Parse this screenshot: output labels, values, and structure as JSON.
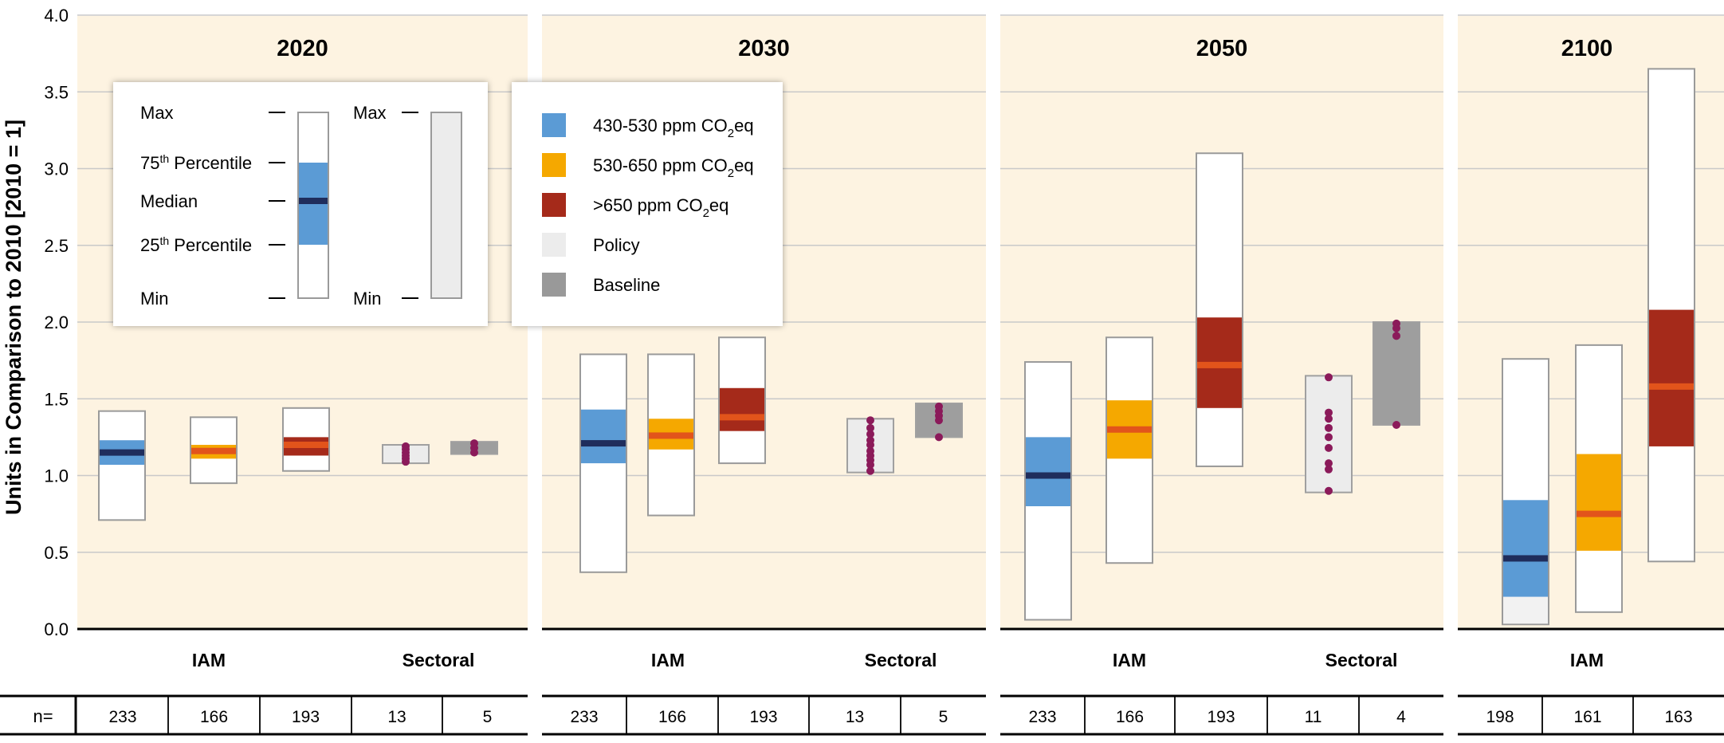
{
  "chart_data": {
    "type": "boxplot",
    "ylabel": "Units in Comparison to 2010 [2010 = 1]",
    "ylim": [
      0,
      4
    ],
    "yticks": [
      "0.0",
      "0.5",
      "1.0",
      "1.5",
      "2.0",
      "2.5",
      "3.0",
      "3.5",
      "4.0"
    ],
    "grid": true,
    "n_label": "n=",
    "legend": {
      "series": [
        {
          "name": "430-530 ppm CO",
          "sub": "2",
          "tail": "eq",
          "color": "#5b9bd5"
        },
        {
          "name": "530-650 ppm CO",
          "sub": "2",
          "tail": "eq",
          "color": "#f5a800"
        },
        {
          "name": ">650 ppm CO",
          "sub": "2",
          "tail": "eq",
          "color": "#a52a1a"
        },
        {
          "name": "Policy",
          "sub": "",
          "tail": "",
          "color": "#ececec"
        },
        {
          "name": "Baseline",
          "sub": "",
          "tail": "",
          "color": "#999999"
        }
      ],
      "key": {
        "max": "Max",
        "p75": "75",
        "p75_sup": "th",
        "p75_tail": " Percentile",
        "median": "Median",
        "p25": "25",
        "p25_sup": "th",
        "p25_tail": " Percentile",
        "min": "Min",
        "max2": "Max",
        "min2": "Min"
      }
    },
    "panels": [
      {
        "title": "2020",
        "groups": [
          "IAM",
          "Sectoral"
        ],
        "n": [
          "233",
          "166",
          "193",
          "13",
          "5"
        ],
        "iam": [
          {
            "series": "430-530",
            "min": 0.71,
            "p25": 1.07,
            "median": 1.15,
            "p75": 1.23,
            "max": 1.42
          },
          {
            "series": "530-650",
            "min": 0.95,
            "p25": 1.11,
            "median": 1.16,
            "p75": 1.2,
            "max": 1.38
          },
          {
            "series": ">650",
            "min": 1.03,
            "p25": 1.13,
            "median": 1.2,
            "p75": 1.25,
            "max": 1.44
          }
        ],
        "sectoral": [
          {
            "series": "Policy",
            "min": 1.08,
            "max": 1.2,
            "points": [
              1.09,
              1.11,
              1.13,
              1.15,
              1.17,
              1.19
            ]
          },
          {
            "series": "Baseline",
            "min": 1.14,
            "max": 1.22,
            "points": [
              1.15,
              1.18,
              1.21
            ]
          }
        ]
      },
      {
        "title": "2030",
        "groups": [
          "IAM",
          "Sectoral"
        ],
        "n": [
          "233",
          "166",
          "193",
          "13",
          "5"
        ],
        "iam": [
          {
            "series": "430-530",
            "min": 0.37,
            "p25": 1.08,
            "median": 1.21,
            "p75": 1.43,
            "max": 1.79
          },
          {
            "series": "530-650",
            "min": 0.74,
            "p25": 1.17,
            "median": 1.26,
            "p75": 1.37,
            "max": 1.79
          },
          {
            "series": ">650",
            "min": 1.08,
            "p25": 1.29,
            "median": 1.38,
            "p75": 1.57,
            "max": 1.9
          }
        ],
        "sectoral": [
          {
            "series": "Policy",
            "min": 1.02,
            "max": 1.37,
            "points": [
              1.03,
              1.07,
              1.1,
              1.13,
              1.16,
              1.2,
              1.23,
              1.27,
              1.31,
              1.36
            ]
          },
          {
            "series": "Baseline",
            "min": 1.25,
            "max": 1.47,
            "points": [
              1.25,
              1.36,
              1.39,
              1.42,
              1.45
            ]
          }
        ]
      },
      {
        "title": "2050",
        "groups": [
          "IAM",
          "Sectoral"
        ],
        "n": [
          "233",
          "166",
          "193",
          "11",
          "4"
        ],
        "iam": [
          {
            "series": "430-530",
            "min": 0.06,
            "p25": 0.8,
            "median": 1.0,
            "p75": 1.25,
            "max": 1.74
          },
          {
            "series": "530-650",
            "min": 0.43,
            "p25": 1.11,
            "median": 1.3,
            "p75": 1.49,
            "max": 1.9
          },
          {
            "series": ">650",
            "min": 1.06,
            "p25": 1.44,
            "median": 1.72,
            "p75": 2.03,
            "max": 3.1
          }
        ],
        "sectoral": [
          {
            "series": "Policy",
            "min": 0.89,
            "max": 1.65,
            "points": [
              0.9,
              1.04,
              1.08,
              1.18,
              1.25,
              1.31,
              1.37,
              1.41,
              1.64
            ]
          },
          {
            "series": "Baseline",
            "min": 1.33,
            "max": 2.0,
            "points": [
              1.33,
              1.91,
              1.96,
              1.99
            ]
          }
        ]
      },
      {
        "title": "2100",
        "groups": [
          "IAM"
        ],
        "n": [
          "198",
          "161",
          "163"
        ],
        "iam": [
          {
            "series": "430-530",
            "min": 0.03,
            "p25": 0.21,
            "median": 0.46,
            "p75": 0.84,
            "max": 1.76
          },
          {
            "series": "530-650",
            "min": 0.11,
            "p25": 0.51,
            "median": 0.75,
            "p75": 1.14,
            "max": 1.85
          },
          {
            "series": ">650",
            "min": 0.44,
            "p25": 1.19,
            "median": 1.58,
            "p75": 2.08,
            "max": 3.65
          }
        ],
        "sectoral": []
      }
    ]
  }
}
